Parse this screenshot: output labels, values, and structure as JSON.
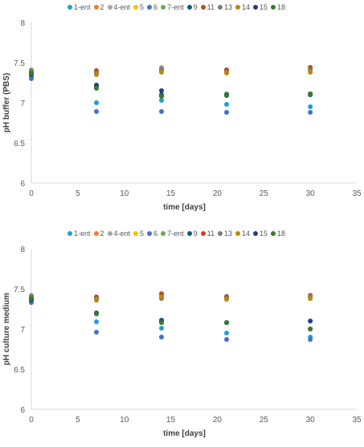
{
  "legend": [
    "1-ent",
    "2",
    "4-ent",
    "5",
    "6",
    "7-ent",
    "9",
    "11",
    "13",
    "14",
    "15",
    "18"
  ],
  "colors": {
    "1-ent": "#1fa0d6",
    "2": "#ed7d31",
    "4-ent": "#a5a5a5",
    "5": "#f5c000",
    "6": "#4472c4",
    "7-ent": "#70ad47",
    "9": "#0d5c7a",
    "11": "#c04a1b",
    "13": "#7a7a7a",
    "14": "#b88a10",
    "15": "#1f3f8a",
    "18": "#3d7a2d"
  },
  "chart_data": [
    {
      "type": "scatter",
      "xlabel": "time [days]",
      "ylabel": "pH buffer (PBS)",
      "xlim": [
        0,
        35
      ],
      "ylim": [
        6,
        8
      ],
      "xticks": [
        "0",
        "5",
        "10",
        "15",
        "20",
        "25",
        "30",
        "35"
      ],
      "yticks": [
        "6",
        "6.5",
        "7",
        "7.5",
        "8"
      ],
      "grid": false,
      "legend_position": "top",
      "series": [
        {
          "name": "1-ent",
          "x": [
            0,
            7,
            14,
            21,
            30
          ],
          "y": [
            7.32,
            7.0,
            7.03,
            6.98,
            6.95
          ]
        },
        {
          "name": "2",
          "x": [
            0,
            7,
            14,
            21,
            30
          ],
          "y": [
            7.39,
            7.37,
            7.41,
            7.38,
            7.4
          ]
        },
        {
          "name": "4-ent",
          "x": [
            0,
            7,
            14,
            21,
            30
          ],
          "y": [
            7.41,
            7.38,
            7.44,
            7.4,
            7.41
          ]
        },
        {
          "name": "5",
          "x": [
            0,
            7,
            14,
            21,
            30
          ],
          "y": [
            7.4,
            7.36,
            7.42,
            7.39,
            7.39
          ]
        },
        {
          "name": "6",
          "x": [
            0,
            7,
            14,
            21,
            30
          ],
          "y": [
            7.3,
            6.89,
            6.89,
            6.88,
            6.88
          ]
        },
        {
          "name": "7-ent",
          "x": [
            0,
            7,
            14,
            21,
            30
          ],
          "y": [
            7.38,
            7.2,
            7.09,
            7.11,
            7.1
          ]
        },
        {
          "name": "9",
          "x": [
            0,
            7,
            14,
            21,
            30
          ],
          "y": [
            7.35,
            7.22,
            7.1,
            7.1,
            7.1
          ]
        },
        {
          "name": "11",
          "x": [
            0,
            7,
            14,
            21,
            30
          ],
          "y": [
            7.39,
            7.4,
            7.4,
            7.41,
            7.44
          ]
        },
        {
          "name": "13",
          "x": [
            0,
            7,
            14,
            21,
            30
          ],
          "y": [
            7.4,
            7.37,
            7.42,
            7.38,
            7.41
          ]
        },
        {
          "name": "14",
          "x": [
            0,
            7,
            14,
            21,
            30
          ],
          "y": [
            7.37,
            7.35,
            7.38,
            7.37,
            7.38
          ]
        },
        {
          "name": "15",
          "x": [
            0,
            7,
            14,
            21,
            30
          ],
          "y": [
            7.36,
            7.21,
            7.15,
            7.09,
            7.11
          ]
        },
        {
          "name": "18",
          "x": [
            0,
            7,
            14,
            21,
            30
          ],
          "y": [
            7.37,
            7.18,
            7.08,
            7.09,
            7.11
          ]
        }
      ]
    },
    {
      "type": "scatter",
      "xlabel": "time [days]",
      "ylabel": "pH culture medium",
      "xlim": [
        0,
        35
      ],
      "ylim": [
        6,
        8
      ],
      "xticks": [
        "0",
        "5",
        "10",
        "15",
        "20",
        "25",
        "30",
        "35"
      ],
      "yticks": [
        "6",
        "6.5",
        "7",
        "7.5",
        "8"
      ],
      "grid": false,
      "legend_position": "top",
      "series": [
        {
          "name": "1-ent",
          "x": [
            0,
            7,
            14,
            21,
            30
          ],
          "y": [
            7.36,
            7.09,
            7.01,
            6.95,
            6.9
          ]
        },
        {
          "name": "2",
          "x": [
            0,
            7,
            14,
            21,
            30
          ],
          "y": [
            7.4,
            7.38,
            7.4,
            7.38,
            7.4
          ]
        },
        {
          "name": "4-ent",
          "x": [
            0,
            7,
            14,
            21,
            30
          ],
          "y": [
            7.42,
            7.4,
            7.42,
            7.41,
            7.41
          ]
        },
        {
          "name": "5",
          "x": [
            0,
            7,
            14,
            21,
            30
          ],
          "y": [
            7.41,
            7.39,
            7.41,
            7.39,
            7.39
          ]
        },
        {
          "name": "6",
          "x": [
            0,
            7,
            14,
            21,
            30
          ],
          "y": [
            7.33,
            6.96,
            6.9,
            6.87,
            6.87
          ]
        },
        {
          "name": "7-ent",
          "x": [
            0,
            7,
            14,
            21,
            30
          ],
          "y": [
            7.39,
            7.2,
            7.09,
            7.08,
            7.0
          ]
        },
        {
          "name": "9",
          "x": [
            0,
            7,
            14,
            21,
            30
          ],
          "y": [
            7.36,
            7.19,
            7.11,
            7.08,
            7.0
          ]
        },
        {
          "name": "11",
          "x": [
            0,
            7,
            14,
            21,
            30
          ],
          "y": [
            7.4,
            7.4,
            7.44,
            7.4,
            7.42
          ]
        },
        {
          "name": "13",
          "x": [
            0,
            7,
            14,
            21,
            30
          ],
          "y": [
            7.41,
            7.38,
            7.38,
            7.38,
            7.41
          ]
        },
        {
          "name": "14",
          "x": [
            0,
            7,
            14,
            21,
            30
          ],
          "y": [
            7.38,
            7.36,
            7.4,
            7.37,
            7.38
          ]
        },
        {
          "name": "15",
          "x": [
            0,
            7,
            14,
            21,
            30
          ],
          "y": [
            7.37,
            7.2,
            7.1,
            7.08,
            7.1
          ]
        },
        {
          "name": "18",
          "x": [
            0,
            7,
            14,
            21,
            30
          ],
          "y": [
            7.38,
            7.19,
            7.08,
            7.08,
            7.0
          ]
        }
      ]
    }
  ]
}
